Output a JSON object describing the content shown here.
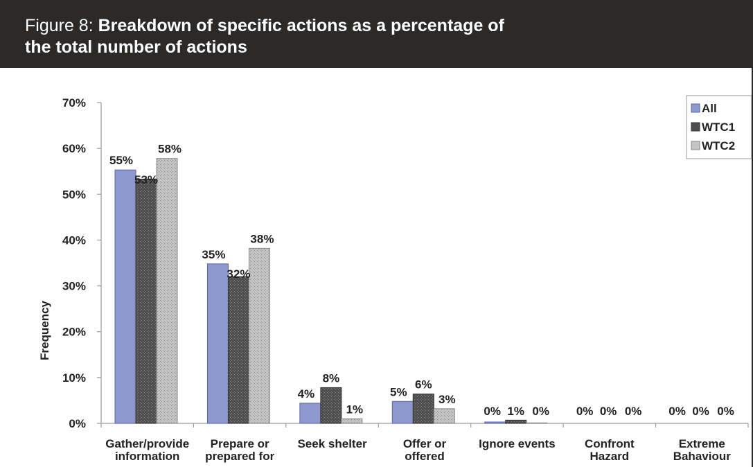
{
  "header": {
    "prefix": "Figure 8: ",
    "title_line1": "Breakdown of specific actions as a percentage of",
    "title_line2": "the total number of actions"
  },
  "colors": {
    "header_bg": "#2b2a29",
    "all": "#8e98cf",
    "wtc1": "#4e4e4e",
    "wtc2": "#b9b9b9"
  },
  "chart_data": {
    "type": "bar",
    "categories": [
      [
        "Gather/provide",
        "information"
      ],
      [
        "Prepare or",
        "prepared for"
      ],
      [
        "Seek shelter"
      ],
      [
        "Offer or",
        "offered"
      ],
      [
        "Ignore events"
      ],
      [
        "Confront",
        "Hazard"
      ],
      [
        "Extreme",
        "Bahaviour"
      ]
    ],
    "series": [
      {
        "name": "All",
        "values": [
          55.3,
          34.8,
          4.4,
          4.8,
          0.3,
          0,
          0
        ],
        "labels": [
          "55%",
          "35%",
          "4%",
          "5%",
          "0%",
          "0%",
          "0%"
        ]
      },
      {
        "name": "WTC1",
        "values": [
          53.3,
          32.0,
          7.8,
          6.4,
          0.7,
          0,
          0
        ],
        "labels": [
          "53%",
          "32%",
          "8%",
          "6%",
          "1%",
          "0%",
          "0%"
        ]
      },
      {
        "name": "WTC2",
        "values": [
          57.8,
          38.2,
          1.0,
          3.2,
          0.1,
          0,
          0
        ],
        "labels": [
          "58%",
          "38%",
          "1%",
          "3%",
          "0%",
          "0%",
          "0%"
        ]
      }
    ],
    "ylabel": "Frequency",
    "ylim": [
      0,
      70
    ],
    "yticks": [
      "0%",
      "10%",
      "20%",
      "30%",
      "40%",
      "50%",
      "60%",
      "70%"
    ],
    "legend": "top-right",
    "grid": false
  }
}
